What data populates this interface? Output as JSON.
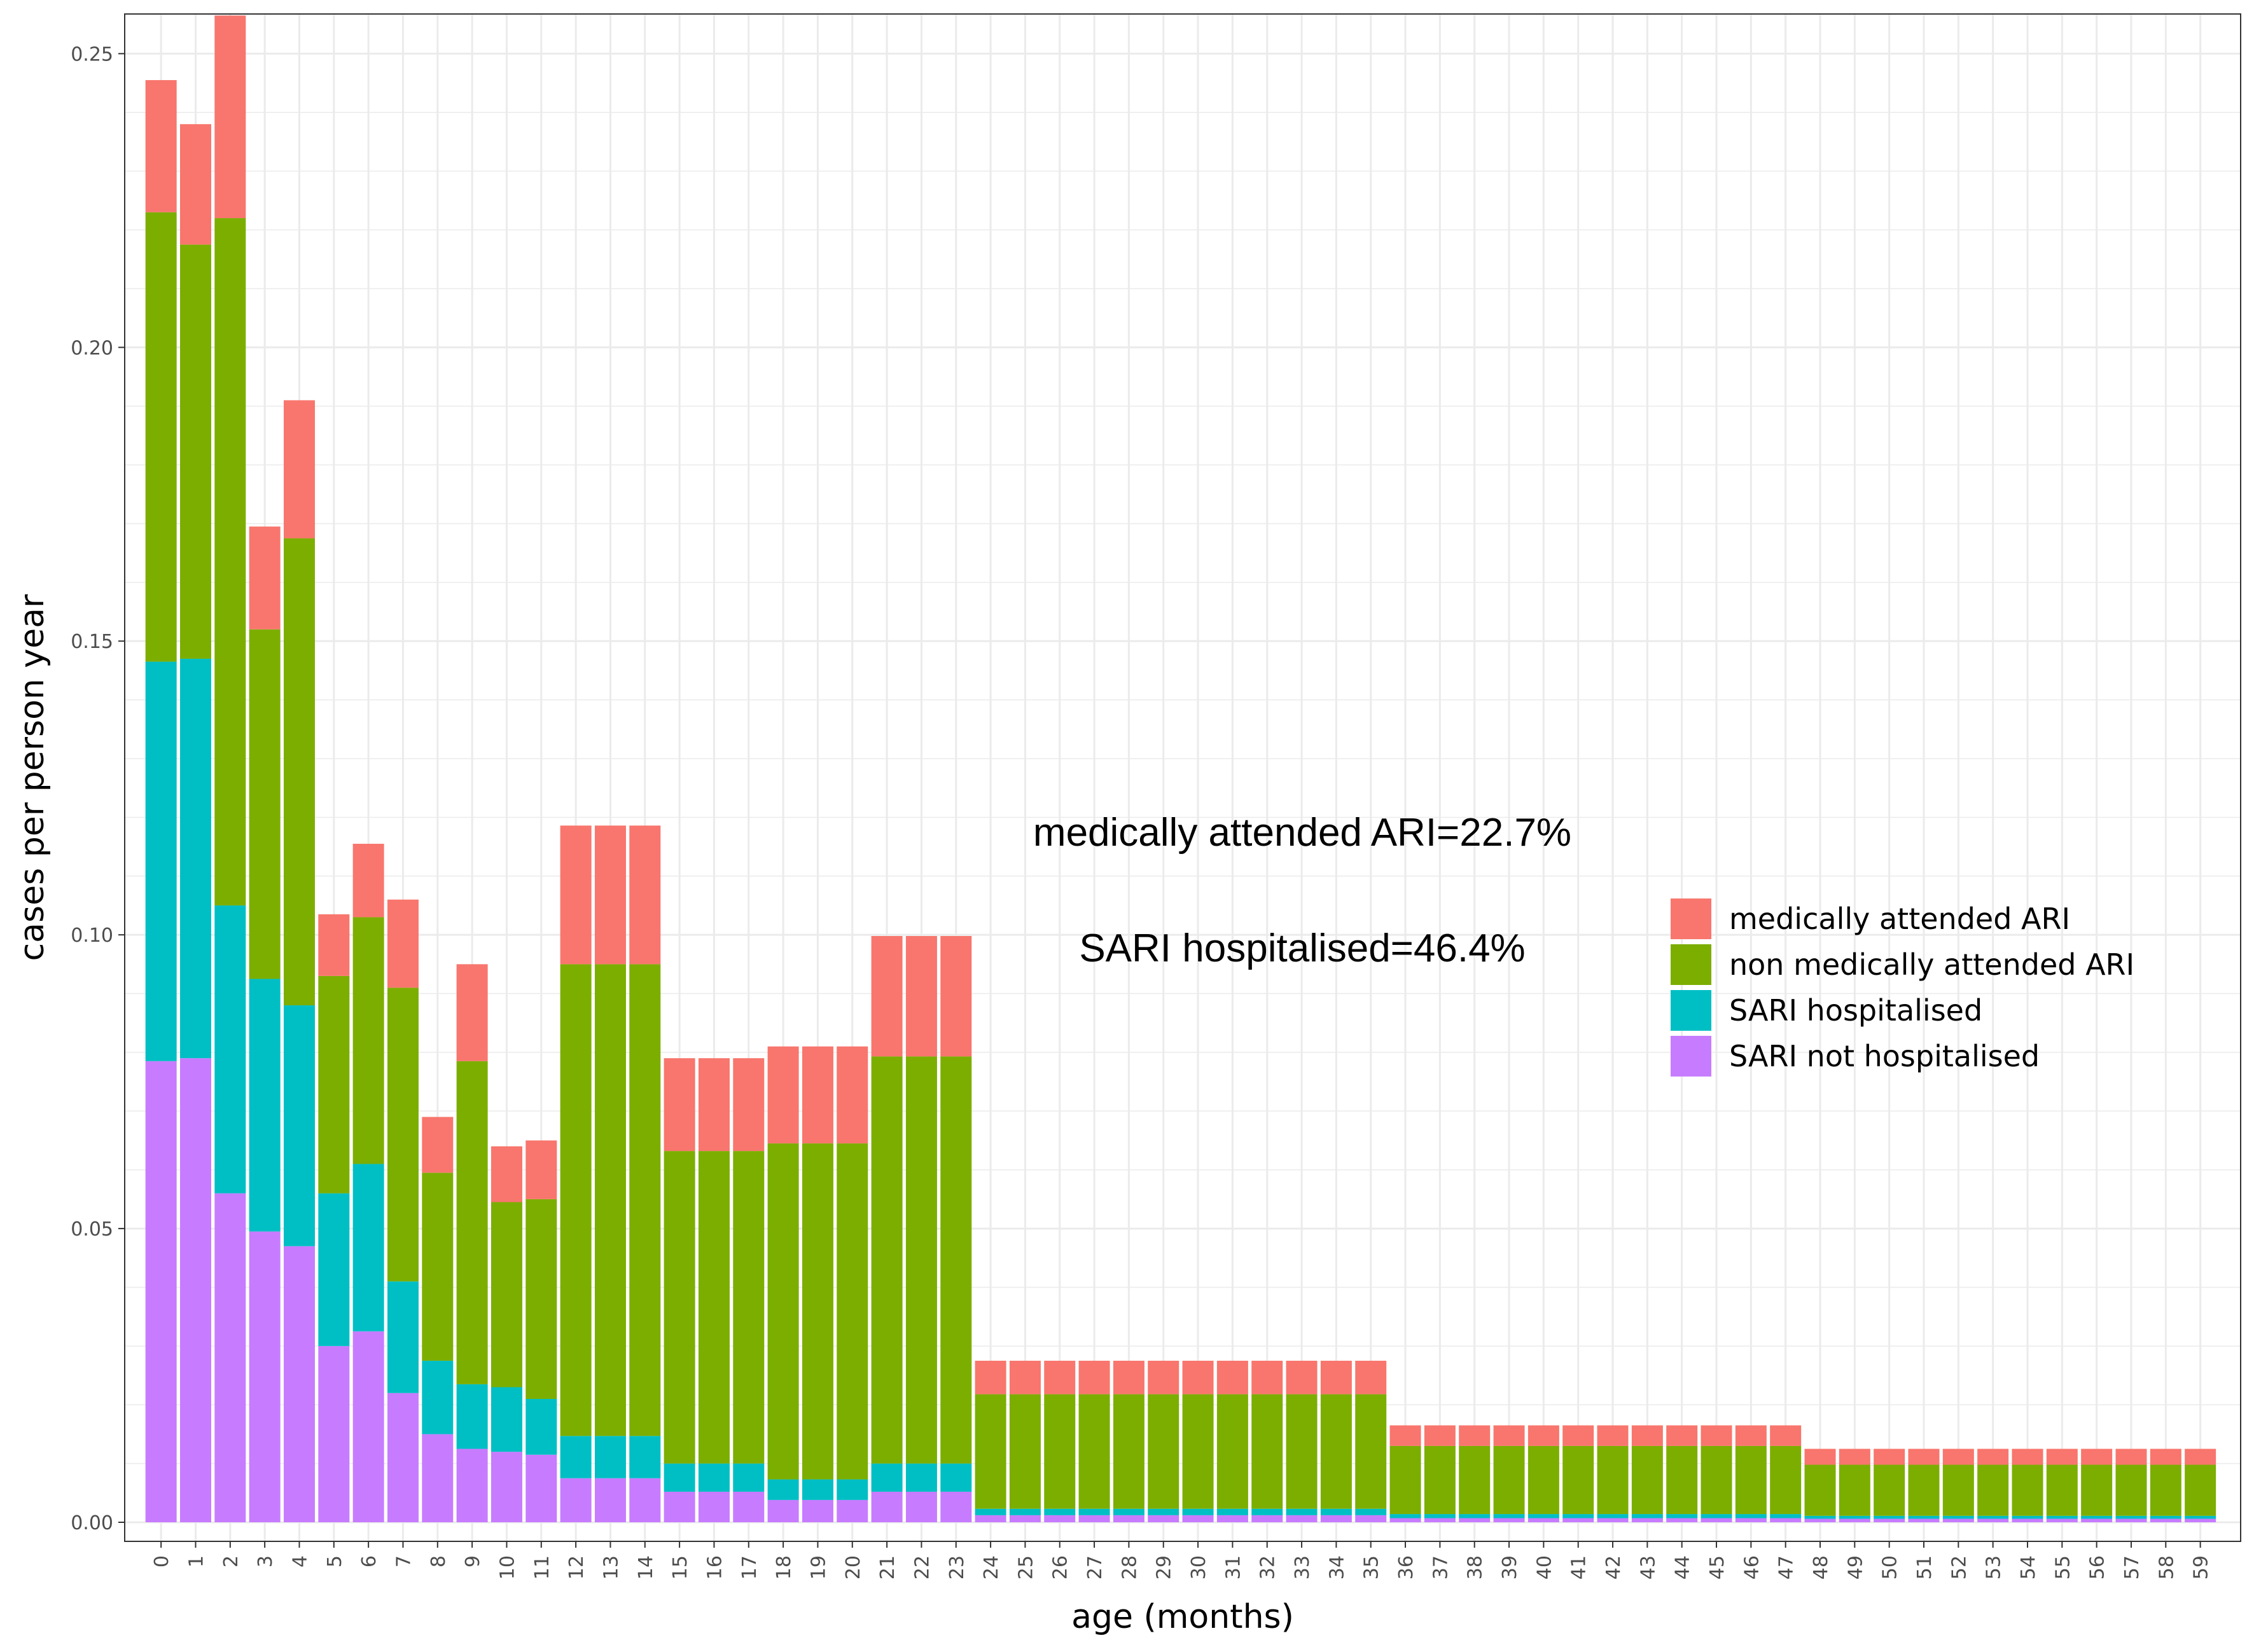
{
  "chart_data": {
    "type": "bar",
    "stacked": true,
    "xlabel": "age (months)",
    "ylabel": "cases per person year",
    "ylim": [
      0,
      0.26
    ],
    "yticks": [
      0.0,
      0.05,
      0.1,
      0.15,
      0.2,
      0.25
    ],
    "ytick_labels": [
      "0.00",
      "0.05",
      "0.10",
      "0.15",
      "0.20",
      "0.25"
    ],
    "grid": true,
    "legend_position": "right",
    "categories": [
      "0",
      "1",
      "2",
      "3",
      "4",
      "5",
      "6",
      "7",
      "8",
      "9",
      "10",
      "11",
      "12",
      "13",
      "14",
      "15",
      "16",
      "17",
      "18",
      "19",
      "20",
      "21",
      "22",
      "23",
      "24",
      "25",
      "26",
      "27",
      "28",
      "29",
      "30",
      "31",
      "32",
      "33",
      "34",
      "35",
      "36",
      "37",
      "38",
      "39",
      "40",
      "41",
      "42",
      "43",
      "44",
      "45",
      "46",
      "47",
      "48",
      "49",
      "50",
      "51",
      "52",
      "53",
      "54",
      "55",
      "56",
      "57",
      "58",
      "59"
    ],
    "series": [
      {
        "name": "SARI not hospitalised",
        "color": "#C77CFF",
        "values": [
          0.0785,
          0.079,
          0.056,
          0.0495,
          0.047,
          0.03,
          0.0325,
          0.022,
          0.015,
          0.0125,
          0.012,
          0.0115,
          0.0075,
          0.0075,
          0.0075,
          0.0052,
          0.0052,
          0.0052,
          0.0038,
          0.0038,
          0.0038,
          0.0052,
          0.0052,
          0.0052,
          0.0012,
          0.0012,
          0.0012,
          0.0012,
          0.0012,
          0.0012,
          0.0012,
          0.0012,
          0.0012,
          0.0012,
          0.0012,
          0.0012,
          0.0007,
          0.0007,
          0.0007,
          0.0007,
          0.0007,
          0.0007,
          0.0007,
          0.0007,
          0.0007,
          0.0007,
          0.0007,
          0.0007,
          0.0006,
          0.0006,
          0.0006,
          0.0006,
          0.0006,
          0.0006,
          0.0006,
          0.0006,
          0.0006,
          0.0006,
          0.0006,
          0.0006
        ]
      },
      {
        "name": "SARI hospitalised",
        "color": "#00BFC4",
        "values": [
          0.068,
          0.068,
          0.049,
          0.043,
          0.041,
          0.026,
          0.0285,
          0.019,
          0.0125,
          0.011,
          0.011,
          0.0095,
          0.0072,
          0.0072,
          0.0072,
          0.0048,
          0.0048,
          0.0048,
          0.0035,
          0.0035,
          0.0035,
          0.0048,
          0.0048,
          0.0048,
          0.0011,
          0.0011,
          0.0011,
          0.0011,
          0.0011,
          0.0011,
          0.0011,
          0.0011,
          0.0011,
          0.0011,
          0.0011,
          0.0011,
          0.0007,
          0.0007,
          0.0007,
          0.0007,
          0.0007,
          0.0007,
          0.0007,
          0.0007,
          0.0007,
          0.0007,
          0.0007,
          0.0007,
          0.0005,
          0.0005,
          0.0005,
          0.0005,
          0.0005,
          0.0005,
          0.0005,
          0.0005,
          0.0005,
          0.0005,
          0.0005,
          0.0005
        ]
      },
      {
        "name": "non medically attended ARI",
        "color": "#7CAE00",
        "values": [
          0.0765,
          0.0705,
          0.117,
          0.0595,
          0.0795,
          0.037,
          0.042,
          0.05,
          0.032,
          0.055,
          0.0315,
          0.034,
          0.0803,
          0.0803,
          0.0803,
          0.0532,
          0.0532,
          0.0532,
          0.0572,
          0.0572,
          0.0572,
          0.0693,
          0.0693,
          0.0693,
          0.0195,
          0.0195,
          0.0195,
          0.0195,
          0.0195,
          0.0195,
          0.0195,
          0.0195,
          0.0195,
          0.0195,
          0.0195,
          0.0195,
          0.0116,
          0.0116,
          0.0116,
          0.0116,
          0.0116,
          0.0116,
          0.0116,
          0.0116,
          0.0116,
          0.0116,
          0.0116,
          0.0116,
          0.0087,
          0.0087,
          0.0087,
          0.0087,
          0.0087,
          0.0087,
          0.0087,
          0.0087,
          0.0087,
          0.0087,
          0.0087,
          0.0087
        ]
      },
      {
        "name": "medically attended ARI",
        "color": "#F8766D",
        "values": [
          0.0225,
          0.0205,
          0.0345,
          0.0175,
          0.0235,
          0.0105,
          0.0125,
          0.015,
          0.0095,
          0.0165,
          0.0095,
          0.01,
          0.0236,
          0.0236,
          0.0236,
          0.0158,
          0.0158,
          0.0158,
          0.0165,
          0.0165,
          0.0165,
          0.0205,
          0.0205,
          0.0205,
          0.0057,
          0.0057,
          0.0057,
          0.0057,
          0.0057,
          0.0057,
          0.0057,
          0.0057,
          0.0057,
          0.0057,
          0.0057,
          0.0057,
          0.0035,
          0.0035,
          0.0035,
          0.0035,
          0.0035,
          0.0035,
          0.0035,
          0.0035,
          0.0035,
          0.0035,
          0.0035,
          0.0035,
          0.0027,
          0.0027,
          0.0027,
          0.0027,
          0.0027,
          0.0027,
          0.0027,
          0.0027,
          0.0027,
          0.0027,
          0.0027,
          0.0027
        ]
      }
    ],
    "legend_order": [
      "medically attended ARI",
      "non medically attended ARI",
      "SARI hospitalised",
      "SARI not hospitalised"
    ],
    "annotations": [
      "medically attended ARI=22.7%",
      "SARI hospitalised=46.4%"
    ]
  }
}
